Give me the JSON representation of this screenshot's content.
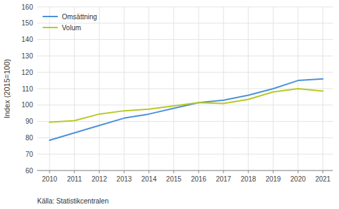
{
  "chart_data": {
    "type": "line",
    "ylabel": "Index (2015=100)",
    "x": [
      2010,
      2011,
      2012,
      2013,
      2014,
      2015,
      2016,
      2017,
      2018,
      2019,
      2020,
      2021
    ],
    "series": [
      {
        "name": "Omsättning",
        "color": "#4a90d9",
        "values": [
          78.5,
          83.0,
          87.5,
          92.0,
          94.5,
          98.0,
          101.5,
          103.0,
          106.0,
          110.0,
          115.0,
          116.0
        ]
      },
      {
        "name": "Volum",
        "color": "#b8c820",
        "values": [
          89.5,
          90.5,
          94.5,
          96.5,
          97.5,
          99.5,
          101.5,
          101.0,
          103.5,
          108.0,
          110.0,
          108.5
        ]
      }
    ],
    "xlim": [
      2009.5,
      2021.4
    ],
    "xticks": [
      2010,
      2011,
      2012,
      2013,
      2014,
      2015,
      2016,
      2017,
      2018,
      2019,
      2020,
      2021
    ],
    "ylim": [
      60,
      160
    ],
    "yticks": [
      60,
      70,
      80,
      90,
      100,
      110,
      120,
      130,
      140,
      150,
      160
    ],
    "grid": true,
    "legend": "upper left",
    "annotations": [
      "Källa: Statistikcentralen"
    ]
  }
}
